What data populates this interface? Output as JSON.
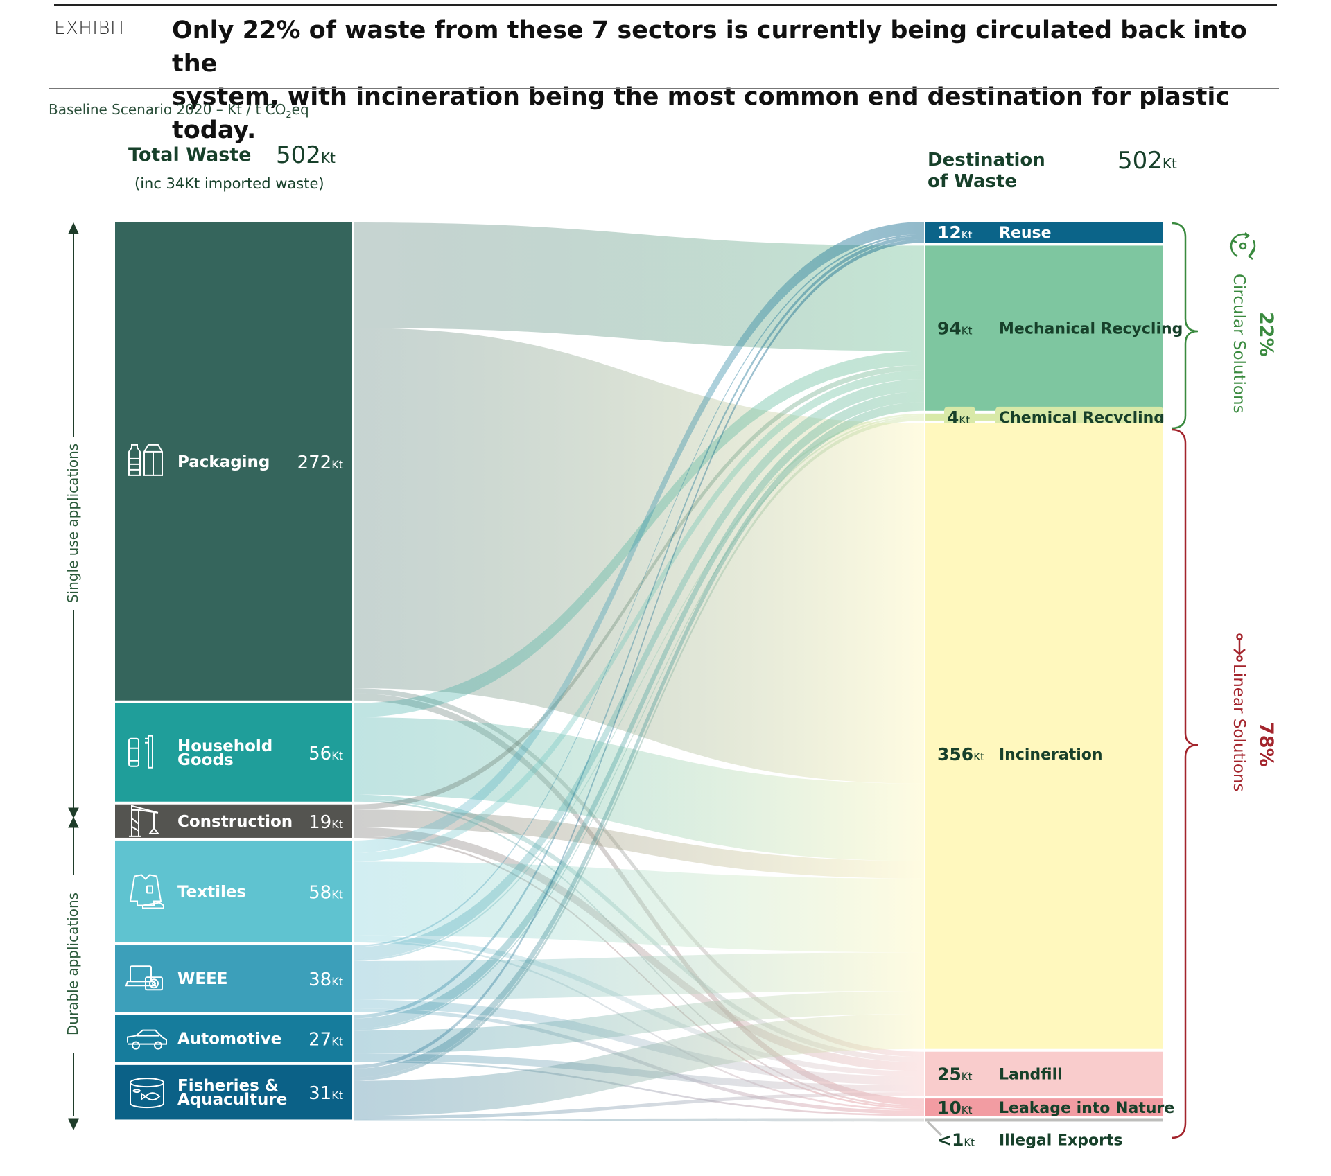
{
  "header": {
    "exhibit_label": "EXHIBIT",
    "title_line1": "Only 22% of waste from these 7 sectors is currently being circulated back into the",
    "title_line2": "system, with incineration being the most common end destination for plastic today.",
    "subtitle_main": "Baseline Scenario 2020 – Kt / t CO",
    "subtitle_sub": "2",
    "subtitle_end": "eq"
  },
  "left_header": {
    "title": "Total Waste",
    "value": "502",
    "unit": "Kt",
    "note": "(inc 34Kt imported waste)"
  },
  "right_header": {
    "title_line1": "Destination",
    "title_line2": "of Waste",
    "value": "502",
    "unit": "Kt"
  },
  "axis_labels": {
    "single_use": "Single use applications",
    "durable": "Durable applications"
  },
  "groups": {
    "circular": {
      "percent": "22%",
      "label": "Circular Solutions",
      "color": "#3a8a3f",
      "icon": "recycle-cycle-icon"
    },
    "linear": {
      "percent": "78%",
      "label": "Linear Solutions",
      "color": "#a3242c",
      "icon": "linear-arrow-icon"
    }
  },
  "chart_data": {
    "type": "sankey",
    "title": "Only 22% of waste from these 7 sectors is currently being circulated back into the system, with incineration being the most common end destination for plastic today.",
    "unit": "Kt",
    "total": 502,
    "sources": [
      {
        "id": "packaging",
        "label": "Packaging",
        "value": 272,
        "display": "272",
        "color": "#35655c",
        "icon": "packaging-bottle-carton-icon"
      },
      {
        "id": "household",
        "label": "Household Goods",
        "label_lines": [
          "Household",
          "Goods"
        ],
        "value": 56,
        "display": "56",
        "color": "#1f9e9a",
        "icon": "household-bottle-toothbrush-icon"
      },
      {
        "id": "construction",
        "label": "Construction",
        "value": 19,
        "display": "19",
        "color": "#545450",
        "icon": "construction-crane-icon"
      },
      {
        "id": "textiles",
        "label": "Textiles",
        "value": 58,
        "display": "58",
        "color": "#5fc3d0",
        "icon": "textiles-shirt-shoe-icon"
      },
      {
        "id": "weee",
        "label": "WEEE",
        "value": 38,
        "display": "38",
        "color": "#3c9fba",
        "icon": "weee-laptop-camera-icon"
      },
      {
        "id": "automotive",
        "label": "Automotive",
        "value": 27,
        "display": "27",
        "color": "#167c9c",
        "icon": "automotive-car-icon"
      },
      {
        "id": "fisheries",
        "label": "Fisheries & Aquaculture",
        "label_lines": [
          "Fisheries &",
          "Aquaculture"
        ],
        "value": 31,
        "display": "31",
        "color": "#0b6187",
        "icon": "fisheries-fish-tank-icon"
      }
    ],
    "destinations": [
      {
        "id": "reuse",
        "label": "Reuse",
        "value": 12,
        "display": "12",
        "color": "#0b6489",
        "text_color": "#ffffff",
        "group": "circular"
      },
      {
        "id": "mech",
        "label": "Mechanical Recycling",
        "value": 94,
        "display": "94",
        "color": "#7ec6a0",
        "text_color": "#17402a",
        "group": "circular"
      },
      {
        "id": "chem",
        "label": "Chemical Recycling",
        "value": 4,
        "display": "4",
        "color": "#d8e9a8",
        "text_color": "#17402a",
        "group": "circular"
      },
      {
        "id": "incin",
        "label": "Incineration",
        "value": 356,
        "display": "356",
        "color": "#fff8be",
        "text_color": "#17402a",
        "group": "linear"
      },
      {
        "id": "landfill",
        "label": "Landfill",
        "value": 25,
        "display": "25",
        "color": "#f9cccc",
        "text_color": "#17402a",
        "group": "linear"
      },
      {
        "id": "leakage",
        "label": "Leakage into Nature",
        "value": 10,
        "display": "10",
        "color": "#f29ca2",
        "text_color": "#17402a",
        "group": "linear"
      },
      {
        "id": "illegal",
        "label": "Illegal Exports",
        "value": 0.4,
        "display": "<1",
        "color": "#bdbdbb",
        "text_color": "#17402a",
        "group": "none"
      }
    ],
    "flows": [
      {
        "source": "packaging",
        "target": "mech",
        "value": 60
      },
      {
        "source": "packaging",
        "target": "incin",
        "value": 205
      },
      {
        "source": "packaging",
        "target": "landfill",
        "value": 3
      },
      {
        "source": "packaging",
        "target": "leakage",
        "value": 4
      },
      {
        "source": "household",
        "target": "mech",
        "value": 8
      },
      {
        "source": "household",
        "target": "incin",
        "value": 44
      },
      {
        "source": "household",
        "target": "landfill",
        "value": 3
      },
      {
        "source": "household",
        "target": "leakage",
        "value": 1
      },
      {
        "source": "construction",
        "target": "mech",
        "value": 3
      },
      {
        "source": "construction",
        "target": "incin",
        "value": 10
      },
      {
        "source": "construction",
        "target": "landfill",
        "value": 5
      },
      {
        "source": "construction",
        "target": "leakage",
        "value": 1
      },
      {
        "source": "textiles",
        "target": "reuse",
        "value": 7
      },
      {
        "source": "textiles",
        "target": "mech",
        "value": 5
      },
      {
        "source": "textiles",
        "target": "incin",
        "value": 42
      },
      {
        "source": "textiles",
        "target": "landfill",
        "value": 3
      },
      {
        "source": "textiles",
        "target": "leakage",
        "value": 1
      },
      {
        "source": "weee",
        "target": "reuse",
        "value": 1
      },
      {
        "source": "weee",
        "target": "mech",
        "value": 7
      },
      {
        "source": "weee",
        "target": "chem",
        "value": 1
      },
      {
        "source": "weee",
        "target": "incin",
        "value": 22
      },
      {
        "source": "weee",
        "target": "landfill",
        "value": 5
      },
      {
        "source": "weee",
        "target": "leakage",
        "value": 2
      },
      {
        "source": "automotive",
        "target": "reuse",
        "value": 2
      },
      {
        "source": "automotive",
        "target": "mech",
        "value": 6
      },
      {
        "source": "automotive",
        "target": "chem",
        "value": 1
      },
      {
        "source": "automotive",
        "target": "incin",
        "value": 13
      },
      {
        "source": "automotive",
        "target": "landfill",
        "value": 4
      },
      {
        "source": "automotive",
        "target": "leakage",
        "value": 1
      },
      {
        "source": "fisheries",
        "target": "reuse",
        "value": 2
      },
      {
        "source": "fisheries",
        "target": "mech",
        "value": 5
      },
      {
        "source": "fisheries",
        "target": "chem",
        "value": 2
      },
      {
        "source": "fisheries",
        "target": "incin",
        "value": 20
      },
      {
        "source": "fisheries",
        "target": "landfill",
        "value": 2
      },
      {
        "source": "fisheries",
        "target": "illegal",
        "value": 0.4
      }
    ]
  }
}
